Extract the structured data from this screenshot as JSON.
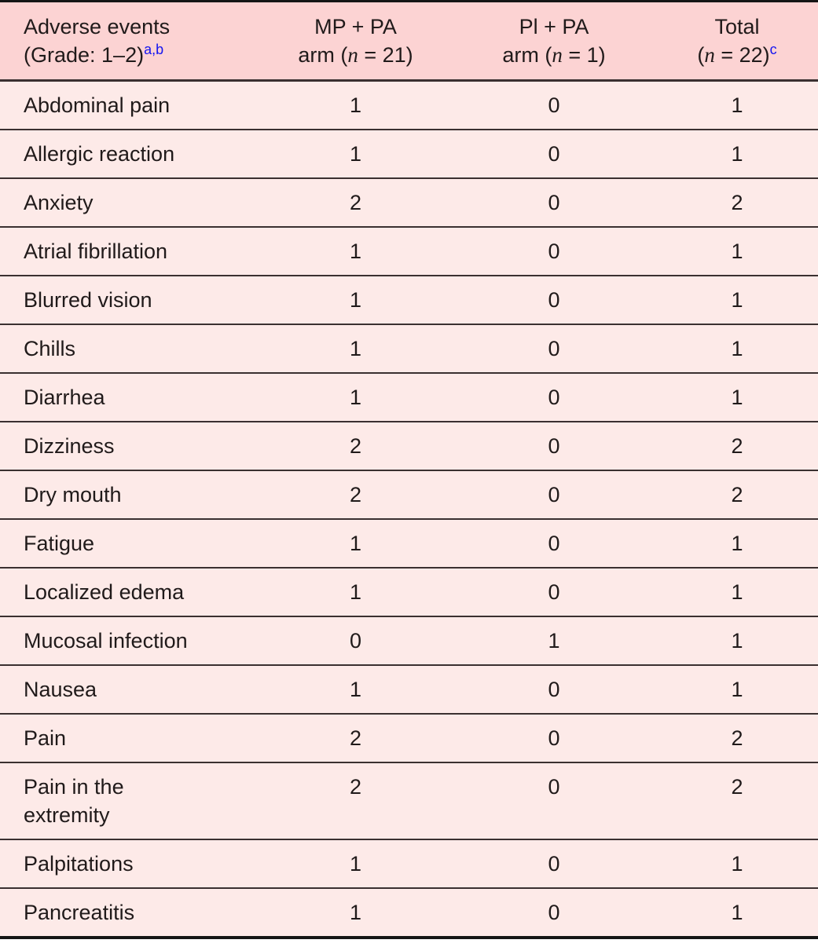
{
  "colors": {
    "header_bg": "#fcd3d3",
    "row_bg": "#fdeae8",
    "rule_dark": "#3a3030",
    "frame_black": "#151515",
    "superscript_blue": "#1414f0",
    "text": "#201a1a"
  },
  "header": {
    "col1": {
      "line1": "Adverse events",
      "line2": "(Grade: 1–2)",
      "superscript": "a,b"
    },
    "col2": {
      "line1": "MP + PA",
      "line2_prefix": "arm (",
      "n_symbol": "n",
      "line2_suffix": " = 21)"
    },
    "col3": {
      "line1": "Pl + PA",
      "line2_prefix": "arm (",
      "n_symbol": "n",
      "line2_suffix": " = 1)"
    },
    "col4": {
      "line1": "Total",
      "line2_prefix": "(",
      "n_symbol": "n",
      "line2_suffix": " = 22)",
      "superscript": "c"
    }
  },
  "table": {
    "rows": [
      {
        "event": "Abdominal pain",
        "mp_pa": "1",
        "pl_pa": "0",
        "total": "1"
      },
      {
        "event": "Allergic reaction",
        "mp_pa": "1",
        "pl_pa": "0",
        "total": "1"
      },
      {
        "event": "Anxiety",
        "mp_pa": "2",
        "pl_pa": "0",
        "total": "2"
      },
      {
        "event": "Atrial fibrillation",
        "mp_pa": "1",
        "pl_pa": "0",
        "total": "1"
      },
      {
        "event": "Blurred vision",
        "mp_pa": "1",
        "pl_pa": "0",
        "total": "1"
      },
      {
        "event": "Chills",
        "mp_pa": "1",
        "pl_pa": "0",
        "total": "1"
      },
      {
        "event": "Diarrhea",
        "mp_pa": "1",
        "pl_pa": "0",
        "total": "1"
      },
      {
        "event": "Dizziness",
        "mp_pa": "2",
        "pl_pa": "0",
        "total": "2"
      },
      {
        "event": "Dry mouth",
        "mp_pa": "2",
        "pl_pa": "0",
        "total": "2"
      },
      {
        "event": "Fatigue",
        "mp_pa": "1",
        "pl_pa": "0",
        "total": "1"
      },
      {
        "event": "Localized edema",
        "mp_pa": "1",
        "pl_pa": "0",
        "total": "1"
      },
      {
        "event": "Mucosal infection",
        "mp_pa": "0",
        "pl_pa": "1",
        "total": "1"
      },
      {
        "event": "Nausea",
        "mp_pa": "1",
        "pl_pa": "0",
        "total": "1"
      },
      {
        "event": "Pain",
        "mp_pa": "2",
        "pl_pa": "0",
        "total": "2"
      },
      {
        "event": "Pain in the extremity",
        "mp_pa": "2",
        "pl_pa": "0",
        "total": "2"
      },
      {
        "event": "Palpitations",
        "mp_pa": "1",
        "pl_pa": "0",
        "total": "1"
      },
      {
        "event": "Pancreatitis",
        "mp_pa": "1",
        "pl_pa": "0",
        "total": "1"
      }
    ]
  }
}
